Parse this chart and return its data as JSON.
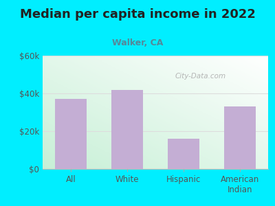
{
  "title": "Median per capita income in 2022",
  "subtitle": "Walker, CA",
  "categories": [
    "All",
    "White",
    "Hispanic",
    "American\nIndian"
  ],
  "values": [
    37000,
    42000,
    16000,
    33000
  ],
  "bar_color": "#c4aed4",
  "background_outer": "#00eeff",
  "title_color": "#222222",
  "subtitle_color": "#558899",
  "tick_color": "#555555",
  "grid_color": "#dddddd",
  "ylim": [
    0,
    60000
  ],
  "yticks": [
    0,
    20000,
    40000,
    60000
  ],
  "ytick_labels": [
    "$0",
    "$20k",
    "$40k",
    "$60k"
  ],
  "watermark": "City-Data.com",
  "title_fontsize": 13,
  "subtitle_fontsize": 9,
  "tick_fontsize": 8.5
}
